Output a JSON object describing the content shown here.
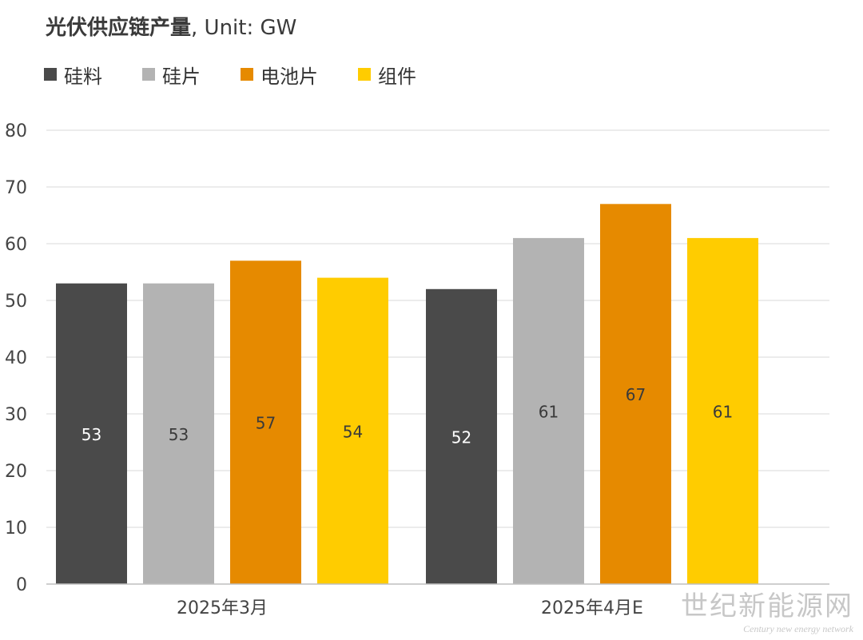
{
  "chart_data": {
    "type": "bar",
    "title": "光伏供应链产量",
    "title_suffix": ", Unit: GW",
    "categories": [
      "2025年3月",
      "2025年4月E"
    ],
    "series": [
      {
        "name": "硅料",
        "color": "#4a4a4a",
        "label_color": "#ffffff",
        "values": [
          53,
          52
        ]
      },
      {
        "name": "硅片",
        "color": "#b3b3b3",
        "label_color": "#3a3a3a",
        "values": [
          53,
          61
        ]
      },
      {
        "name": "电池片",
        "color": "#e68a00",
        "label_color": "#3a3a3a",
        "values": [
          57,
          67
        ]
      },
      {
        "name": "组件",
        "color": "#ffcc00",
        "label_color": "#3a3a3a",
        "values": [
          54,
          61
        ]
      }
    ],
    "ylim": [
      0,
      80
    ],
    "yticks": [
      0,
      10,
      20,
      30,
      40,
      50,
      60,
      70,
      80
    ],
    "grid": true,
    "legend_position": "top-left",
    "data_labels": "center"
  },
  "watermark": {
    "cn": "世纪新能源网",
    "en": "Century new energy network"
  }
}
